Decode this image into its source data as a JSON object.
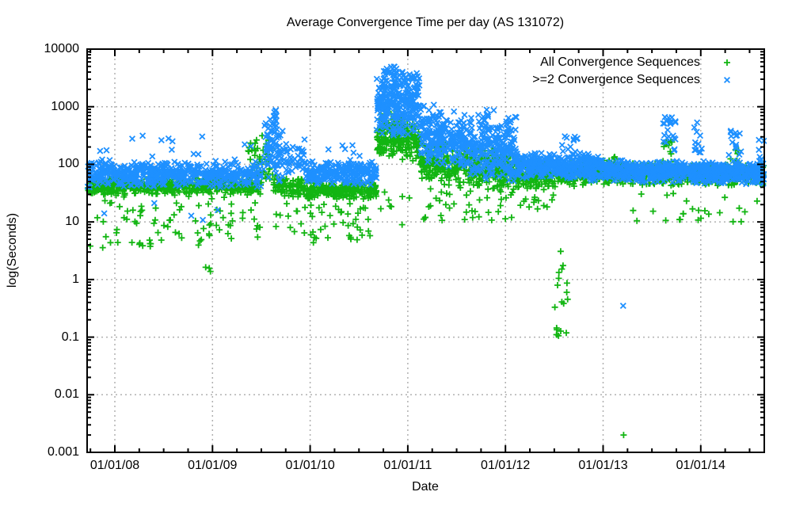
{
  "colors": {
    "green": "#12b512",
    "blue": "#1e90ff",
    "grid": "#b0b0b0",
    "axis": "#000000",
    "background": "#ffffff",
    "text": "#000000"
  },
  "chart_data": {
    "type": "scatter",
    "title": "Average Convergence Time per day (AS 131072)",
    "xlabel": "Date",
    "ylabel": "log(Seconds)",
    "grid": true,
    "legend_position": "top-right-inside",
    "x_axis": {
      "scale": "time",
      "tick_labels": [
        "01/01/08",
        "01/01/09",
        "01/01/10",
        "01/01/11",
        "01/01/12",
        "01/01/13",
        "01/01/14"
      ],
      "tick_positions_years": [
        2008,
        2009,
        2010,
        2011,
        2012,
        2013,
        2014
      ],
      "range_years": [
        2007.716,
        2014.651
      ],
      "minor_ticks": "quarterly"
    },
    "y_axis": {
      "scale": "log10",
      "tick_labels": [
        "0.001",
        "0.01",
        "0.1",
        "1",
        "10",
        "100",
        "1000",
        "10000"
      ],
      "tick_values": [
        0.001,
        0.01,
        0.1,
        1,
        10,
        100,
        1000,
        10000
      ],
      "range": [
        0.001,
        10000
      ],
      "minor_ticks": "log-subdecade"
    },
    "series": [
      {
        "name": "All Convergence Sequences",
        "marker": "plus",
        "color": "#12b512"
      },
      {
        "name": ">=2 Convergence Sequences",
        "marker": "cross",
        "color": "#1e90ff"
      }
    ],
    "cluster_format": "[series_index, t_start_years, t_end_years, n_points, kind(n=band:a=center_log10,b=sigma,optional end_center | u=uniform:a=lo_log10,b=hi_log10)]",
    "point_clusters": [
      [
        0,
        2007.72,
        2009.5,
        540,
        "n",
        1.63,
        0.11
      ],
      [
        0,
        2007.72,
        2009.5,
        85,
        "u",
        0.55,
        1.45
      ],
      [
        0,
        2008.9,
        2009.2,
        3,
        "u",
        0.05,
        0.28
      ],
      [
        0,
        2009.35,
        2009.62,
        55,
        "u",
        1.75,
        2.5
      ],
      [
        0,
        2009.62,
        2009.95,
        95,
        "n",
        1.62,
        0.14
      ],
      [
        0,
        2009.65,
        2009.95,
        12,
        "u",
        0.8,
        1.4
      ],
      [
        0,
        2009.95,
        2010.68,
        240,
        "n",
        1.56,
        0.11
      ],
      [
        0,
        2010.0,
        2010.62,
        40,
        "u",
        0.6,
        1.35
      ],
      [
        0,
        2010.68,
        2011.12,
        210,
        "n",
        2.45,
        0.25
      ],
      [
        0,
        2010.72,
        2010.95,
        10,
        "u",
        2.6,
        2.9
      ],
      [
        0,
        2010.68,
        2011.12,
        8,
        "u",
        0.9,
        1.6
      ],
      [
        0,
        2011.12,
        2012.12,
        420,
        "n",
        2.05,
        0.25,
        1.9
      ],
      [
        0,
        2011.15,
        2012.1,
        40,
        "u",
        1.0,
        1.6
      ],
      [
        0,
        2012.12,
        2012.55,
        180,
        "n",
        1.82,
        0.16
      ],
      [
        0,
        2012.15,
        2012.5,
        15,
        "u",
        1.2,
        1.6
      ],
      [
        0,
        2012.48,
        2012.66,
        14,
        "u",
        -1.0,
        -0.05
      ],
      [
        0,
        2012.5,
        2012.66,
        5,
        "u",
        0.0,
        0.55
      ],
      [
        0,
        2012.55,
        2012.72,
        60,
        "n",
        1.85,
        0.15
      ],
      [
        0,
        2012.72,
        2013.2,
        190,
        "n",
        1.9,
        0.16
      ],
      [
        0,
        2013.2,
        2014.65,
        540,
        "n",
        1.83,
        0.13
      ],
      [
        0,
        2013.25,
        2014.6,
        25,
        "u",
        1.0,
        1.5
      ],
      [
        0,
        2013.6,
        2013.72,
        14,
        "u",
        2.0,
        2.5
      ],
      [
        0,
        2014.28,
        2014.4,
        8,
        "u",
        2.0,
        2.3
      ],
      [
        1,
        2007.72,
        2009.5,
        540,
        "n",
        1.83,
        0.16
      ],
      [
        1,
        2007.75,
        2009.45,
        14,
        "u",
        2.05,
        2.5
      ],
      [
        1,
        2007.8,
        2009.4,
        5,
        "u",
        0.95,
        1.35
      ],
      [
        1,
        2009.52,
        2009.72,
        80,
        "n",
        2.35,
        0.38,
        2.15
      ],
      [
        1,
        2009.6,
        2009.66,
        12,
        "u",
        2.6,
        2.97
      ],
      [
        1,
        2009.72,
        2009.95,
        45,
        "n",
        2.1,
        0.22
      ],
      [
        1,
        2009.95,
        2010.68,
        240,
        "n",
        1.84,
        0.14
      ],
      [
        1,
        2010.0,
        2010.6,
        8,
        "u",
        2.0,
        2.4
      ],
      [
        1,
        2010.68,
        2011.12,
        300,
        "n",
        3.05,
        0.38
      ],
      [
        1,
        2010.75,
        2010.95,
        28,
        "u",
        3.3,
        3.72
      ],
      [
        1,
        2011.12,
        2012.12,
        480,
        "n",
        2.55,
        0.35,
        2.15
      ],
      [
        1,
        2011.7,
        2011.95,
        16,
        "u",
        2.6,
        2.95
      ],
      [
        1,
        2012.0,
        2012.12,
        10,
        "u",
        2.5,
        2.85
      ],
      [
        1,
        2012.12,
        2012.55,
        190,
        "n",
        1.98,
        0.15
      ],
      [
        1,
        2012.55,
        2013.0,
        200,
        "n",
        1.95,
        0.16
      ],
      [
        1,
        2012.58,
        2012.75,
        12,
        "u",
        2.2,
        2.5
      ],
      [
        1,
        2013.0,
        2013.35,
        150,
        "n",
        1.9,
        0.13
      ],
      [
        1,
        2013.35,
        2013.78,
        190,
        "n",
        1.88,
        0.13
      ],
      [
        1,
        2013.6,
        2013.75,
        22,
        "u",
        2.2,
        2.85
      ],
      [
        1,
        2013.78,
        2014.12,
        150,
        "n",
        1.86,
        0.13
      ],
      [
        1,
        2013.93,
        2014.02,
        12,
        "u",
        2.2,
        2.75
      ],
      [
        1,
        2014.12,
        2014.65,
        230,
        "n",
        1.86,
        0.13
      ],
      [
        1,
        2014.28,
        2014.42,
        14,
        "u",
        2.1,
        2.6
      ],
      [
        1,
        2014.58,
        2014.65,
        8,
        "u",
        2.0,
        2.45
      ]
    ],
    "outlier_points": [
      {
        "series": 1,
        "t_years": 2013.205,
        "value_seconds": 0.35
      },
      {
        "series": 0,
        "t_years": 2013.21,
        "value_seconds": 0.002
      }
    ],
    "seed": 1337
  }
}
